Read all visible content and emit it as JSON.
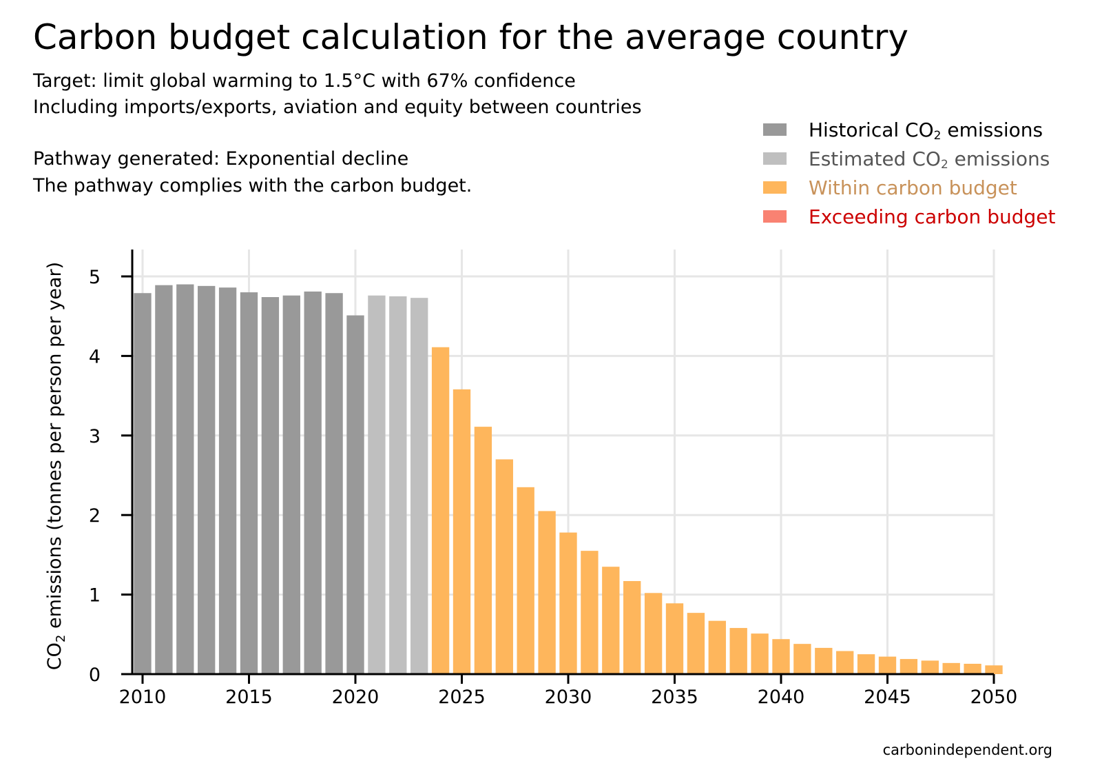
{
  "header": {
    "title": "Carbon budget calculation for the average country",
    "subtitle_line1": "Target: limit global warming to 1.5°C with 67% confidence",
    "subtitle_line2": "Including imports/exports, aviation and equity between countries",
    "pathway_line": "Pathway generated: Exponential decline",
    "compliance_line": "The pathway complies with the carbon budget."
  },
  "legend": {
    "historical_pre": "Historical CO",
    "historical_sub": "2",
    "historical_post": " emissions",
    "estimated_pre": "Estimated CO",
    "estimated_sub": "2",
    "estimated_post": " emissions",
    "within": "Within carbon budget",
    "exceeding": "Exceeding carbon budget"
  },
  "colors": {
    "historical": "#999999",
    "estimated": "#bfbfbf",
    "within": "#feb65c",
    "exceeding": "#f98272",
    "within_text": "#c8925a",
    "exceeding_text": "#cc0000",
    "estimated_text": "#555555",
    "grid": "#e6e6e6"
  },
  "source": "carbonindependent.org",
  "chart_data": {
    "type": "bar",
    "ylabel_pre": "CO",
    "ylabel_sub": "2",
    "ylabel_post": " emissions (tonnes per person per year)",
    "xlabel": "",
    "ylim": [
      0,
      5.35
    ],
    "xlim": [
      2009.5,
      2050.5
    ],
    "x_ticks": [
      2010,
      2015,
      2020,
      2025,
      2030,
      2035,
      2040,
      2045,
      2050
    ],
    "y_ticks": [
      0,
      1,
      2,
      3,
      4,
      5
    ],
    "grid": true,
    "legend_position": "top-right",
    "series": [
      {
        "name": "Historical CO2 emissions",
        "color_key": "historical",
        "x": [
          2010,
          2011,
          2012,
          2013,
          2014,
          2015,
          2016,
          2017,
          2018,
          2019,
          2020
        ],
        "values": [
          4.79,
          4.89,
          4.9,
          4.88,
          4.86,
          4.8,
          4.74,
          4.76,
          4.81,
          4.79,
          4.51
        ]
      },
      {
        "name": "Estimated CO2 emissions",
        "color_key": "estimated",
        "x": [
          2021,
          2022,
          2023
        ],
        "values": [
          4.76,
          4.75,
          4.73
        ]
      },
      {
        "name": "Within carbon budget",
        "color_key": "within",
        "x": [
          2024,
          2025,
          2026,
          2027,
          2028,
          2029,
          2030,
          2031,
          2032,
          2033,
          2034,
          2035,
          2036,
          2037,
          2038,
          2039,
          2040,
          2041,
          2042,
          2043,
          2044,
          2045,
          2046,
          2047,
          2048,
          2049,
          2050
        ],
        "values": [
          4.11,
          3.58,
          3.11,
          2.7,
          2.35,
          2.05,
          1.78,
          1.55,
          1.35,
          1.17,
          1.02,
          0.89,
          0.77,
          0.67,
          0.58,
          0.51,
          0.44,
          0.38,
          0.33,
          0.29,
          0.25,
          0.22,
          0.19,
          0.17,
          0.14,
          0.13,
          0.11
        ]
      },
      {
        "name": "Exceeding carbon budget",
        "color_key": "exceeding",
        "x": [],
        "values": []
      }
    ]
  }
}
